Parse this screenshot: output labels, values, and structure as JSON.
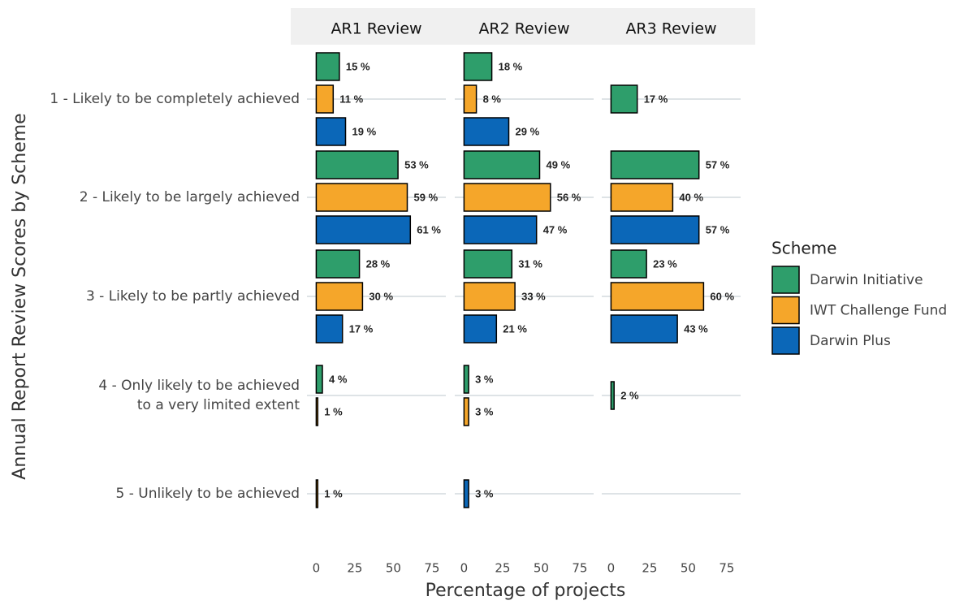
{
  "chart_data": {
    "type": "bar",
    "orientation": "horizontal",
    "x_label": "Percentage of projects",
    "y_label": "Annual Report Review Scores by Scheme",
    "legend_title": "Scheme",
    "categories": [
      [
        "1 - Likely to be completely achieved"
      ],
      [
        "2 - Likely to be largely achieved"
      ],
      [
        "3 - Likely to be partly achieved"
      ],
      [
        "4 - Only likely to be achieved",
        "to a very limited extent"
      ],
      [
        "5 - Unlikely to be achieved"
      ]
    ],
    "series": [
      {
        "name": "Darwin Initiative",
        "color": "#2e9e6b"
      },
      {
        "name": "IWT Challenge Fund",
        "color": "#f5a62a"
      },
      {
        "name": "Darwin Plus",
        "color": "#0b67b8"
      }
    ],
    "xlim": [
      -6,
      84
    ],
    "xticks": [
      0,
      25,
      50,
      75
    ],
    "grid": true,
    "facets": [
      {
        "title": "AR1 Review",
        "values": [
          [
            15,
            53,
            28,
            4,
            null
          ],
          [
            11,
            59,
            30,
            1,
            1
          ],
          [
            19,
            61,
            17,
            null,
            null
          ]
        ],
        "value_labels": [
          [
            "15 %",
            "53 %",
            "28 %",
            "4 %",
            null
          ],
          [
            "11 %",
            "59 %",
            "30 %",
            "1 %",
            "1 %"
          ],
          [
            "19 %",
            "61 %",
            "17 %",
            null,
            null
          ]
        ]
      },
      {
        "title": "AR2 Review",
        "values": [
          [
            18,
            49,
            31,
            3,
            null
          ],
          [
            8,
            56,
            33,
            3,
            null
          ],
          [
            29,
            47,
            21,
            null,
            3
          ]
        ],
        "value_labels": [
          [
            "18 %",
            "49 %",
            "31 %",
            "3 %",
            null
          ],
          [
            "8 %",
            "56 %",
            "33 %",
            "3 %",
            null
          ],
          [
            "29 %",
            "47 %",
            "21 %",
            null,
            "3 %"
          ]
        ]
      },
      {
        "title": "AR3 Review",
        "values": [
          [
            17,
            57,
            23,
            2,
            null
          ],
          [
            null,
            40,
            60,
            null,
            null
          ],
          [
            null,
            57,
            43,
            null,
            null
          ]
        ],
        "value_labels": [
          [
            "17 %",
            "57 %",
            "23 %",
            "2 %",
            null
          ],
          [
            null,
            "40 %",
            "60 %",
            null,
            null
          ],
          [
            null,
            "57 %",
            "43 %",
            null,
            null
          ]
        ]
      }
    ]
  }
}
